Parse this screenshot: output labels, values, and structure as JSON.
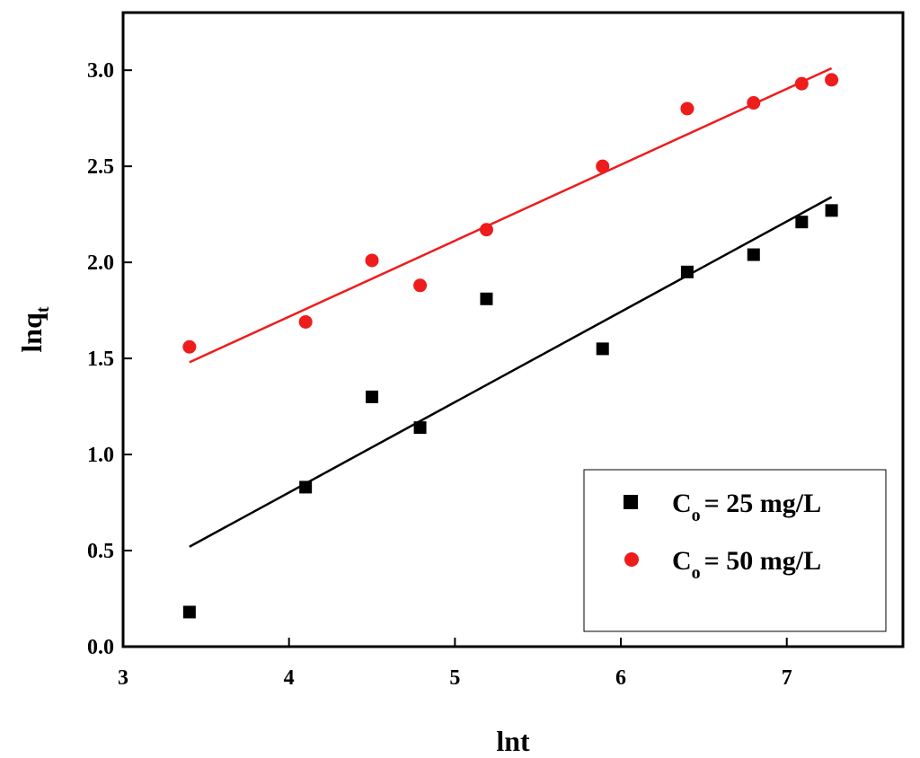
{
  "chart_data": {
    "type": "scatter",
    "title": "",
    "xlabel": "lnt",
    "ylabel_main": "lnq",
    "ylabel_sub": "t",
    "xlim": [
      3,
      7.7
    ],
    "ylim": [
      0,
      3.3
    ],
    "xticks": [
      3,
      4,
      5,
      6,
      7
    ],
    "yticks": [
      0.0,
      0.5,
      1.0,
      1.5,
      2.0,
      2.5,
      3.0
    ],
    "ytick_labels": [
      "0.0",
      "0.5",
      "1.0",
      "1.5",
      "2.0",
      "2.5",
      "3.0"
    ],
    "legend_position": "bottom-right",
    "series": [
      {
        "name": "C_o = 25 mg/L",
        "legend_main": "C",
        "legend_sub": "o",
        "legend_rest": "= 25 mg/L",
        "marker": "square",
        "color": "#000000",
        "x": [
          3.4,
          4.1,
          4.5,
          4.79,
          5.19,
          5.89,
          6.4,
          6.8,
          7.09,
          7.27
        ],
        "y": [
          0.18,
          0.83,
          1.3,
          1.14,
          1.81,
          1.55,
          1.95,
          2.04,
          2.21,
          2.27
        ],
        "fit": {
          "x": [
            3.4,
            7.27
          ],
          "y": [
            0.52,
            2.34
          ]
        }
      },
      {
        "name": "C_o = 50 mg/L",
        "legend_main": "C",
        "legend_sub": "o",
        "legend_rest": "= 50 mg/L",
        "marker": "circle",
        "color": "#ee1c1c",
        "x": [
          3.4,
          4.1,
          4.5,
          4.79,
          5.19,
          5.89,
          6.4,
          6.8,
          7.09,
          7.27
        ],
        "y": [
          1.56,
          1.69,
          2.01,
          1.88,
          2.17,
          2.5,
          2.8,
          2.83,
          2.93,
          2.95
        ],
        "fit": {
          "x": [
            3.4,
            7.27
          ],
          "y": [
            1.48,
            3.01
          ]
        }
      }
    ]
  }
}
